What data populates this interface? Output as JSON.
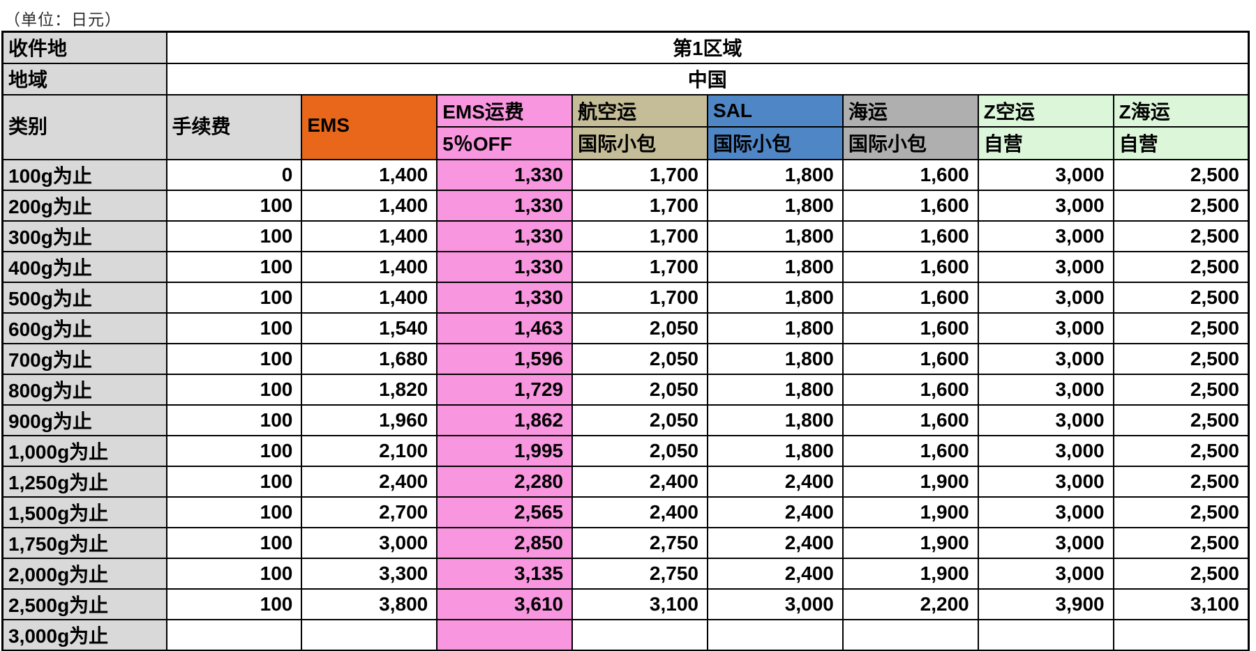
{
  "unit_note": "（单位：日元）",
  "header": {
    "dest_label": "收件地",
    "dest_value": "第1区域",
    "region_label": "地域",
    "region_value": "中国",
    "category_label": "类别",
    "fee_label": "手续费"
  },
  "service_columns": [
    {
      "name": "EMS",
      "line1": "EMS",
      "line2": "",
      "color": "#E8671B"
    },
    {
      "name": "EMS运费5％OFF",
      "line1": "EMS运费",
      "line2": "5％OFF",
      "color": "#F896DF"
    },
    {
      "name": "航空运国际小包",
      "line1": "航空运",
      "line2": "国际小包",
      "color": "#C4BD97"
    },
    {
      "name": "SAL国际小包",
      "line1": "SAL",
      "line2": "国际小包",
      "color": "#4F86C6"
    },
    {
      "name": "海运国际小包",
      "line1": "海运",
      "line2": "国际小包",
      "color": "#AFAFAF"
    },
    {
      "name": "Z空运自营",
      "line1": "Z空运",
      "line2": "自营",
      "color": "#DCF6DA"
    },
    {
      "name": "Z海运自营",
      "line1": "Z海运",
      "line2": "自营",
      "color": "#DCF6DA"
    }
  ],
  "colors": {
    "label_gray": "#D9D9D9",
    "highlight_pink": "#F896DF",
    "border_black": "#000000"
  },
  "rows": [
    {
      "label": "100g为止",
      "values": [
        "0",
        "1,400",
        "1,330",
        "1,700",
        "1,800",
        "1,600",
        "3,000",
        "2,500"
      ]
    },
    {
      "label": "200g为止",
      "values": [
        "100",
        "1,400",
        "1,330",
        "1,700",
        "1,800",
        "1,600",
        "3,000",
        "2,500"
      ]
    },
    {
      "label": "300g为止",
      "values": [
        "100",
        "1,400",
        "1,330",
        "1,700",
        "1,800",
        "1,600",
        "3,000",
        "2,500"
      ]
    },
    {
      "label": "400g为止",
      "values": [
        "100",
        "1,400",
        "1,330",
        "1,700",
        "1,800",
        "1,600",
        "3,000",
        "2,500"
      ]
    },
    {
      "label": "500g为止",
      "values": [
        "100",
        "1,400",
        "1,330",
        "1,700",
        "1,800",
        "1,600",
        "3,000",
        "2,500"
      ]
    },
    {
      "label": "600g为止",
      "values": [
        "100",
        "1,540",
        "1,463",
        "2,050",
        "1,800",
        "1,600",
        "3,000",
        "2,500"
      ]
    },
    {
      "label": "700g为止",
      "values": [
        "100",
        "1,680",
        "1,596",
        "2,050",
        "1,800",
        "1,600",
        "3,000",
        "2,500"
      ]
    },
    {
      "label": "800g为止",
      "values": [
        "100",
        "1,820",
        "1,729",
        "2,050",
        "1,800",
        "1,600",
        "3,000",
        "2,500"
      ]
    },
    {
      "label": "900g为止",
      "values": [
        "100",
        "1,960",
        "1,862",
        "2,050",
        "1,800",
        "1,600",
        "3,000",
        "2,500"
      ]
    },
    {
      "label": "1,000g为止",
      "values": [
        "100",
        "2,100",
        "1,995",
        "2,050",
        "1,800",
        "1,600",
        "3,000",
        "2,500"
      ]
    },
    {
      "label": "1,250g为止",
      "values": [
        "100",
        "2,400",
        "2,280",
        "2,400",
        "2,400",
        "1,900",
        "3,000",
        "2,500"
      ]
    },
    {
      "label": "1,500g为止",
      "values": [
        "100",
        "2,700",
        "2,565",
        "2,400",
        "2,400",
        "1,900",
        "3,000",
        "2,500"
      ]
    },
    {
      "label": "1,750g为止",
      "values": [
        "100",
        "3,000",
        "2,850",
        "2,750",
        "2,400",
        "1,900",
        "3,000",
        "2,500"
      ]
    },
    {
      "label": "2,000g为止",
      "values": [
        "100",
        "3,300",
        "3,135",
        "2,750",
        "2,400",
        "1,900",
        "3,000",
        "2,500"
      ]
    },
    {
      "label": "2,500g为止",
      "values": [
        "100",
        "3,800",
        "3,610",
        "3,100",
        "3,000",
        "2,200",
        "3,900",
        "3,100"
      ]
    },
    {
      "label": "3,000g为止",
      "values": [
        "",
        "",
        "",
        "",
        "",
        "",
        "",
        ""
      ]
    }
  ]
}
